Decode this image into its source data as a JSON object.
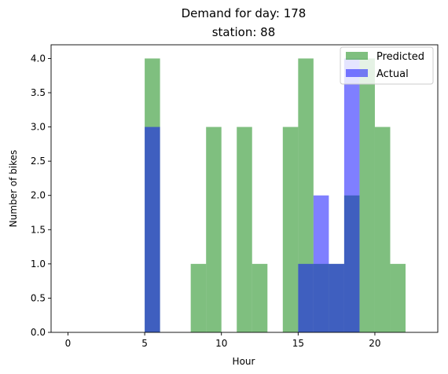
{
  "chart_data": {
    "type": "bar",
    "title_lines": [
      "Demand for day: 178",
      "station: 88"
    ],
    "xlabel": "Hour",
    "ylabel": "Number of bikes",
    "xlim": [
      -1.1,
      24.1
    ],
    "ylim": [
      0,
      4.2
    ],
    "xticks": [
      0,
      5,
      10,
      15,
      20
    ],
    "xtick_labels": [
      "0",
      "5",
      "10",
      "15",
      "20"
    ],
    "yticks": [
      0.0,
      0.5,
      1.0,
      1.5,
      2.0,
      2.5,
      3.0,
      3.5,
      4.0
    ],
    "ytick_labels": [
      "0.0",
      "0.5",
      "1.0",
      "1.5",
      "2.0",
      "2.5",
      "3.0",
      "3.5",
      "4.0"
    ],
    "bin_width": 1,
    "legend_position": "top-right",
    "series": [
      {
        "name": "Predicted",
        "color": "#008000",
        "opacity": 0.5,
        "bins": [
          {
            "x": 5,
            "value": 4
          },
          {
            "x": 8,
            "value": 1
          },
          {
            "x": 9,
            "value": 3
          },
          {
            "x": 11,
            "value": 3
          },
          {
            "x": 12,
            "value": 1
          },
          {
            "x": 14,
            "value": 3
          },
          {
            "x": 15,
            "value": 4
          },
          {
            "x": 16,
            "value": 1
          },
          {
            "x": 17,
            "value": 1
          },
          {
            "x": 18,
            "value": 2
          },
          {
            "x": 19,
            "value": 4
          },
          {
            "x": 20,
            "value": 3
          },
          {
            "x": 21,
            "value": 1
          }
        ]
      },
      {
        "name": "Actual",
        "color": "#0000ff",
        "opacity": 0.5,
        "bins": [
          {
            "x": 5,
            "value": 3
          },
          {
            "x": 15,
            "value": 1
          },
          {
            "x": 16,
            "value": 2
          },
          {
            "x": 17,
            "value": 1
          },
          {
            "x": 18,
            "value": 4
          }
        ]
      }
    ]
  }
}
